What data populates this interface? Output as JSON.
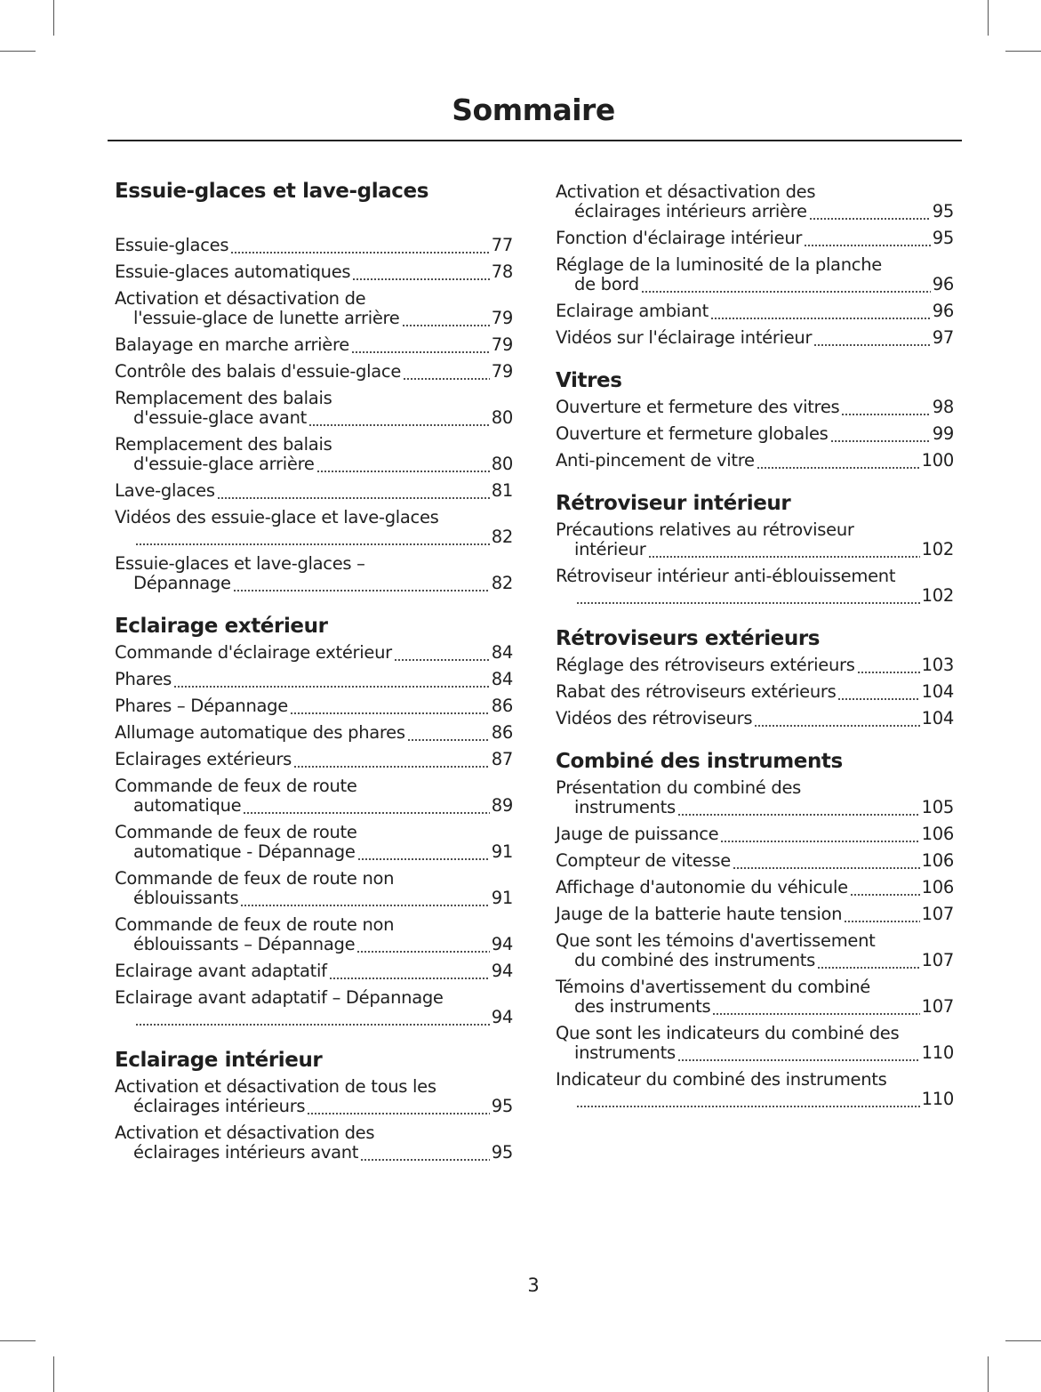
{
  "title": "Sommaire",
  "page_number": "3",
  "columns": [
    {
      "sections": [
        {
          "heading": "Essuie-glaces et lave-glaces",
          "entries": [
            {
              "lines": [
                "Essuie-glaces"
              ],
              "page": "77"
            },
            {
              "lines": [
                "Essuie-glaces automatiques"
              ],
              "page": "78"
            },
            {
              "lines": [
                "Activation et désactivation de",
                "l'essuie-glace de lunette arrière"
              ],
              "page": "79"
            },
            {
              "lines": [
                "Balayage en marche arrière"
              ],
              "page": "79"
            },
            {
              "lines": [
                "Contrôle des balais d'essuie-glace"
              ],
              "page": "79"
            },
            {
              "lines": [
                "Remplacement des balais",
                "d'essuie-glace avant"
              ],
              "page": "80"
            },
            {
              "lines": [
                "Remplacement des balais",
                "d'essuie-glace arrière"
              ],
              "page": "80"
            },
            {
              "lines": [
                "Lave-glaces"
              ],
              "page": "81"
            },
            {
              "lines": [
                "Vidéos des essuie-glace et lave-glaces",
                ""
              ],
              "page": "82"
            },
            {
              "lines": [
                "Essuie-glaces et lave-glaces –",
                "Dépannage"
              ],
              "page": "82"
            }
          ]
        },
        {
          "heading": "Eclairage extérieur",
          "entries": [
            {
              "lines": [
                "Commande d'éclairage extérieur"
              ],
              "page": "84"
            },
            {
              "lines": [
                "Phares"
              ],
              "page": "84"
            },
            {
              "lines": [
                "Phares – Dépannage"
              ],
              "page": "86"
            },
            {
              "lines": [
                "Allumage automatique des phares"
              ],
              "page": "86"
            },
            {
              "lines": [
                "Eclairages extérieurs"
              ],
              "page": "87"
            },
            {
              "lines": [
                "Commande de feux de route",
                "automatique"
              ],
              "page": "89"
            },
            {
              "lines": [
                "Commande de feux de route",
                "automatique - Dépannage"
              ],
              "page": "91"
            },
            {
              "lines": [
                "Commande de feux de route non",
                "éblouissants"
              ],
              "page": "91"
            },
            {
              "lines": [
                "Commande de feux de route non",
                "éblouissants – Dépannage"
              ],
              "page": "94"
            },
            {
              "lines": [
                "Eclairage avant adaptatif"
              ],
              "page": "94"
            },
            {
              "lines": [
                "Eclairage avant adaptatif – Dépannage",
                ""
              ],
              "page": "94"
            }
          ]
        },
        {
          "heading": "Eclairage intérieur",
          "entries": [
            {
              "lines": [
                "Activation et désactivation de tous les",
                "éclairages intérieurs"
              ],
              "page": "95"
            },
            {
              "lines": [
                "Activation et désactivation des",
                "éclairages intérieurs avant"
              ],
              "page": "95"
            }
          ]
        }
      ]
    },
    {
      "sections": [
        {
          "heading": "",
          "entries": [
            {
              "lines": [
                "Activation et désactivation des",
                "éclairages intérieurs arrière"
              ],
              "page": "95"
            },
            {
              "lines": [
                "Fonction d'éclairage intérieur"
              ],
              "page": "95"
            },
            {
              "lines": [
                "Réglage de la luminosité de la planche",
                "de bord"
              ],
              "page": "96"
            },
            {
              "lines": [
                "Eclairage ambiant"
              ],
              "page": "96"
            },
            {
              "lines": [
                "Vidéos sur l'éclairage intérieur"
              ],
              "page": "97"
            }
          ]
        },
        {
          "heading": "Vitres",
          "entries": [
            {
              "lines": [
                "Ouverture et fermeture des vitres"
              ],
              "page": "98"
            },
            {
              "lines": [
                "Ouverture et fermeture globales"
              ],
              "page": "99"
            },
            {
              "lines": [
                "Anti-pincement de vitre"
              ],
              "page": "100"
            }
          ]
        },
        {
          "heading": "Rétroviseur intérieur",
          "entries": [
            {
              "lines": [
                "Précautions relatives au rétroviseur",
                "intérieur"
              ],
              "page": "102"
            },
            {
              "lines": [
                "Rétroviseur intérieur anti-éblouissement",
                ""
              ],
              "page": "102"
            }
          ]
        },
        {
          "heading": "Rétroviseurs extérieurs",
          "entries": [
            {
              "lines": [
                "Réglage des rétroviseurs extérieurs"
              ],
              "page": "103"
            },
            {
              "lines": [
                "Rabat des rétroviseurs extérieurs"
              ],
              "page": "104"
            },
            {
              "lines": [
                "Vidéos des rétroviseurs"
              ],
              "page": "104"
            }
          ]
        },
        {
          "heading": "Combiné des instruments",
          "entries": [
            {
              "lines": [
                "Présentation du combiné des",
                "instruments"
              ],
              "page": "105"
            },
            {
              "lines": [
                "Jauge de puissance"
              ],
              "page": "106"
            },
            {
              "lines": [
                "Compteur de vitesse"
              ],
              "page": "106"
            },
            {
              "lines": [
                "Affichage d'autonomie du véhicule"
              ],
              "page": "106"
            },
            {
              "lines": [
                "Jauge de la batterie haute tension"
              ],
              "page": "107"
            },
            {
              "lines": [
                "Que sont les témoins d'avertissement",
                "du combiné des instruments"
              ],
              "page": "107"
            },
            {
              "lines": [
                "Témoins d'avertissement du combiné",
                "des instruments"
              ],
              "page": "107"
            },
            {
              "lines": [
                "Que sont les indicateurs du combiné des",
                "instruments"
              ],
              "page": "110"
            },
            {
              "lines": [
                "Indicateur du combiné des instruments",
                ""
              ],
              "page": "110"
            }
          ]
        }
      ]
    }
  ]
}
